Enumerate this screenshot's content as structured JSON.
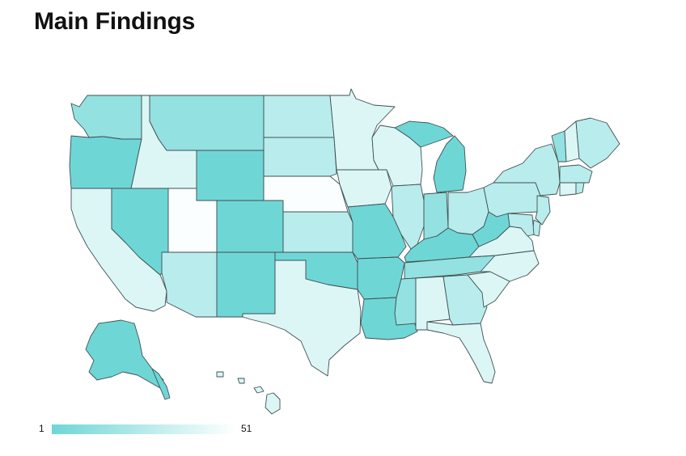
{
  "title": "Main Findings",
  "legend": {
    "min_label": "1",
    "max_label": "51",
    "min_color": "#6fd6d6",
    "max_color": "#ffffff"
  },
  "rank_colors": {
    "dark": "#6fd6d6",
    "mid": "#93e1e1",
    "light": "#b9ecec",
    "pale": "#dcf6f6",
    "white": "#fbfefe"
  },
  "states": [
    {
      "name": "Washington",
      "shade": "mid"
    },
    {
      "name": "Oregon",
      "shade": "dark"
    },
    {
      "name": "California",
      "shade": "pale"
    },
    {
      "name": "Idaho",
      "shade": "pale"
    },
    {
      "name": "Nevada",
      "shade": "dark"
    },
    {
      "name": "Utah",
      "shade": "white"
    },
    {
      "name": "Arizona",
      "shade": "light"
    },
    {
      "name": "Montana",
      "shade": "mid"
    },
    {
      "name": "Wyoming",
      "shade": "dark"
    },
    {
      "name": "Colorado",
      "shade": "dark"
    },
    {
      "name": "New Mexico",
      "shade": "dark"
    },
    {
      "name": "North Dakota",
      "shade": "light"
    },
    {
      "name": "South Dakota",
      "shade": "light"
    },
    {
      "name": "Nebraska",
      "shade": "white"
    },
    {
      "name": "Kansas",
      "shade": "light"
    },
    {
      "name": "Oklahoma",
      "shade": "dark"
    },
    {
      "name": "Texas",
      "shade": "pale"
    },
    {
      "name": "Minnesota",
      "shade": "pale"
    },
    {
      "name": "Iowa",
      "shade": "pale"
    },
    {
      "name": "Missouri",
      "shade": "dark"
    },
    {
      "name": "Arkansas",
      "shade": "dark"
    },
    {
      "name": "Louisiana",
      "shade": "dark"
    },
    {
      "name": "Wisconsin",
      "shade": "pale"
    },
    {
      "name": "Illinois",
      "shade": "light"
    },
    {
      "name": "Michigan",
      "shade": "dark"
    },
    {
      "name": "Indiana",
      "shade": "mid"
    },
    {
      "name": "Ohio",
      "shade": "light"
    },
    {
      "name": "Kentucky",
      "shade": "dark"
    },
    {
      "name": "Tennessee",
      "shade": "mid"
    },
    {
      "name": "Mississippi",
      "shade": "mid"
    },
    {
      "name": "Alabama",
      "shade": "pale"
    },
    {
      "name": "Georgia",
      "shade": "light"
    },
    {
      "name": "Florida",
      "shade": "pale"
    },
    {
      "name": "South Carolina",
      "shade": "pale"
    },
    {
      "name": "North Carolina",
      "shade": "pale"
    },
    {
      "name": "Virginia",
      "shade": "pale"
    },
    {
      "name": "West Virginia",
      "shade": "dark"
    },
    {
      "name": "Pennsylvania",
      "shade": "light"
    },
    {
      "name": "New York",
      "shade": "light"
    },
    {
      "name": "Vermont",
      "shade": "mid"
    },
    {
      "name": "New Hampshire",
      "shade": "pale"
    },
    {
      "name": "Maine",
      "shade": "light"
    },
    {
      "name": "Massachusetts",
      "shade": "light"
    },
    {
      "name": "Connecticut",
      "shade": "pale"
    },
    {
      "name": "Rhode Island",
      "shade": "light"
    },
    {
      "name": "New Jersey",
      "shade": "light"
    },
    {
      "name": "Delaware",
      "shade": "light"
    },
    {
      "name": "Maryland",
      "shade": "light"
    },
    {
      "name": "Alaska",
      "shade": "dark"
    },
    {
      "name": "Hawaii",
      "shade": "pale"
    }
  ]
}
